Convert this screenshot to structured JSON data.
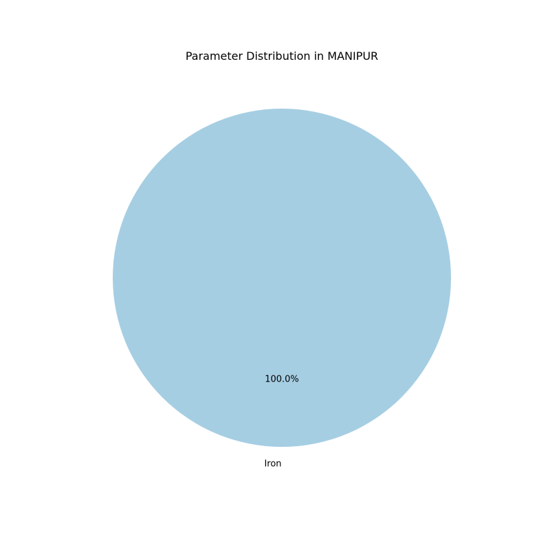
{
  "chart_data": {
    "type": "pie",
    "title": "Parameter Distribution in MANIPUR",
    "slices": [
      {
        "label": "Iron",
        "value": 100.0,
        "pct_label": "100.0%",
        "color": "#a6cee3"
      }
    ],
    "legend": "none",
    "grid": false
  }
}
